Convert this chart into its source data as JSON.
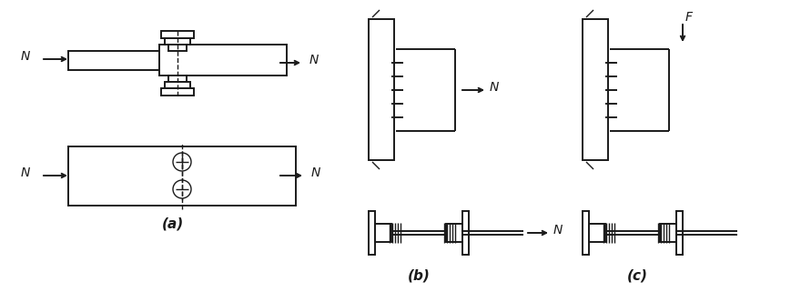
{
  "bg_color": "#ffffff",
  "line_color": "#1a1a1a",
  "label_a": "(a)",
  "label_b": "(b)",
  "label_c": "(c)",
  "label_N": "N",
  "label_F": "F",
  "figsize": [
    8.7,
    3.21
  ],
  "dpi": 100
}
